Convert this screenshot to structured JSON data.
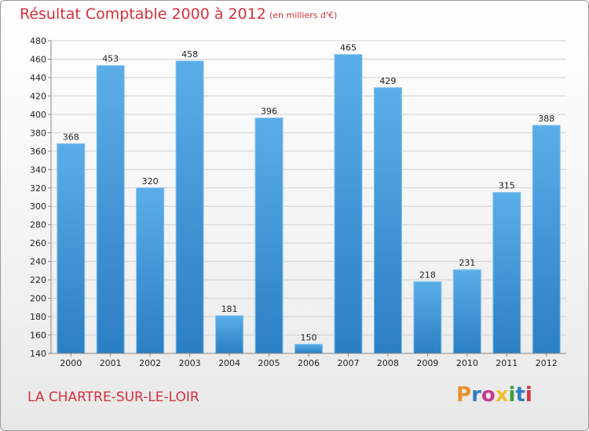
{
  "header": {
    "title": "Résultat Comptable 2000 à 2012",
    "subtitle": "(en milliers d'€)"
  },
  "footer": {
    "commune": "LA CHARTRE-SUR-LE-LOIR",
    "logo_text": "Proxiti"
  },
  "colors": {
    "title": "#d2313d",
    "bar_light": "#5aaee8",
    "bar_dark": "#2b7fc3",
    "grid": "#d0d0d0",
    "logo_letters": [
      "#e8912a",
      "#2e7fc1",
      "#c43b8f",
      "#f0c12d",
      "#3a9a3e",
      "#2e7fc1",
      "#d2313d"
    ]
  },
  "chart_data": {
    "type": "bar",
    "title": "Résultat Comptable 2000 à 2012",
    "subtitle": "(en milliers d'€)",
    "categories": [
      "2000",
      "2001",
      "2002",
      "2003",
      "2004",
      "2005",
      "2006",
      "2007",
      "2008",
      "2009",
      "2010",
      "2011",
      "2012"
    ],
    "values": [
      368,
      453,
      320,
      458,
      181,
      396,
      150,
      465,
      429,
      218,
      231,
      315,
      388
    ],
    "ylim": [
      140,
      480
    ],
    "yticks": [
      140,
      160,
      180,
      200,
      220,
      240,
      260,
      280,
      300,
      320,
      340,
      360,
      380,
      400,
      420,
      440,
      460,
      480
    ],
    "grid": true,
    "xlabel": "",
    "ylabel": ""
  }
}
